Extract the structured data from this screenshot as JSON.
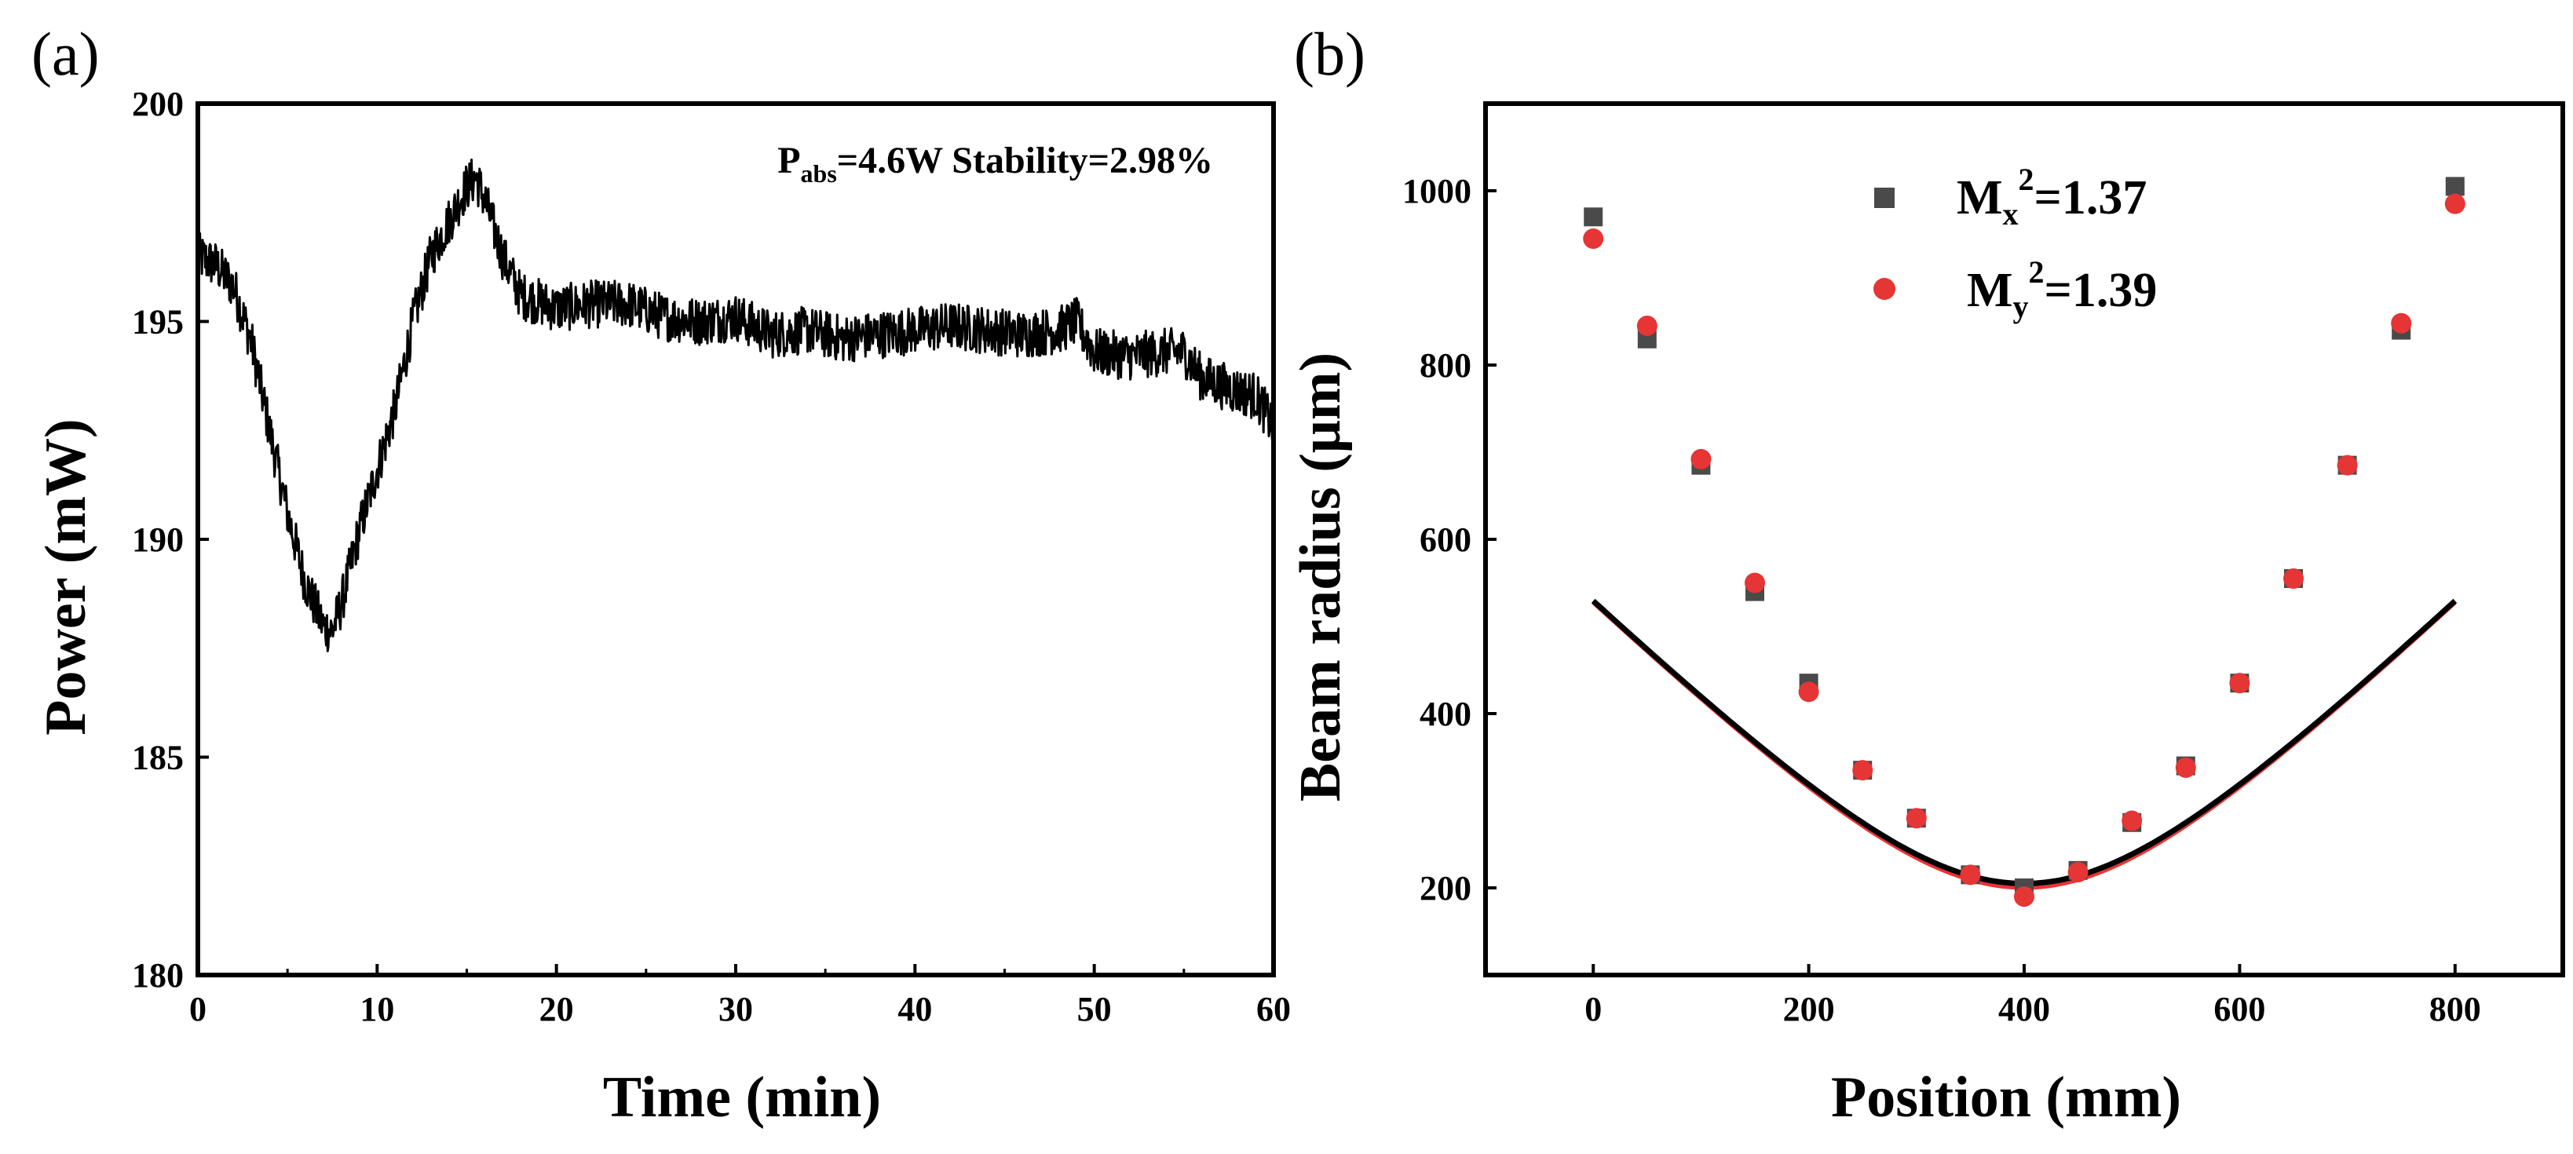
{
  "chart_data": [
    {
      "panel": "(a)",
      "type": "line",
      "title": "",
      "xlabel": "Time (min)",
      "ylabel": "Power (mW)",
      "xlim": [
        0,
        60
      ],
      "ylim": [
        180,
        200
      ],
      "xticks": [
        0,
        10,
        20,
        30,
        40,
        50,
        60
      ],
      "yticks": [
        180,
        185,
        190,
        195,
        200
      ],
      "annotation": {
        "prefix": "P",
        "subscript": "abs",
        "rest": "=4.6W Stability=2.98%"
      },
      "series": [
        {
          "name": "Power",
          "color": "#000000",
          "noise": 0.55,
          "keypoints": [
            [
              0,
              196.5
            ],
            [
              1,
              196.3
            ],
            [
              2,
              195.8
            ],
            [
              3,
              194.5
            ],
            [
              4,
              192.5
            ],
            [
              5,
              190.6
            ],
            [
              6,
              189.0
            ],
            [
              7,
              188.0
            ],
            [
              7.5,
              187.9
            ],
            [
              8,
              188.5
            ],
            [
              9,
              190.2
            ],
            [
              10,
              191.6
            ],
            [
              11,
              193.0
            ],
            [
              12,
              195.0
            ],
            [
              13,
              196.5
            ],
            [
              14,
              197.3
            ],
            [
              15,
              198.1
            ],
            [
              15.5,
              198.3
            ],
            [
              16,
              197.8
            ],
            [
              17,
              196.5
            ],
            [
              18,
              195.6
            ],
            [
              20,
              195.3
            ],
            [
              22,
              195.4
            ],
            [
              24,
              195.4
            ],
            [
              26,
              195.1
            ],
            [
              28,
              195.0
            ],
            [
              30,
              195.1
            ],
            [
              32,
              194.7
            ],
            [
              34,
              194.8
            ],
            [
              36,
              194.6
            ],
            [
              38,
              194.7
            ],
            [
              40,
              194.8
            ],
            [
              42,
              194.9
            ],
            [
              44,
              194.8
            ],
            [
              46,
              194.7
            ],
            [
              48,
              194.8
            ],
            [
              49,
              195.0
            ],
            [
              50,
              194.3
            ],
            [
              52,
              194.2
            ],
            [
              54,
              194.3
            ],
            [
              55,
              194.3
            ],
            [
              56,
              193.7
            ],
            [
              58,
              193.4
            ],
            [
              59,
              193.3
            ],
            [
              60,
              192.6
            ]
          ]
        }
      ]
    },
    {
      "panel": "(b)",
      "type": "scatter",
      "title": "",
      "xlabel": "Position (mm)",
      "ylabel": "Beam radius (μm)",
      "xlim": [
        -100,
        900
      ],
      "ylim": [
        100,
        1100
      ],
      "xticks": [
        0,
        200,
        400,
        600,
        800
      ],
      "yticks": [
        200,
        400,
        600,
        800,
        1000
      ],
      "legend_position": "top-center",
      "series": [
        {
          "name": "Mx",
          "label_base": "M",
          "label_sub": "x",
          "label_sup": "2",
          "label_value": "=1.37",
          "marker": "square",
          "color": "#4a4a4a",
          "x": [
            0,
            50,
            100,
            150,
            200,
            250,
            300,
            350,
            400,
            450,
            500,
            550,
            600,
            650,
            700,
            750,
            800
          ],
          "y": [
            970,
            830,
            685,
            540,
            435,
            335,
            280,
            215,
            200,
            220,
            275,
            340,
            435,
            555,
            685,
            840,
            1005
          ],
          "fit": {
            "w0": 205,
            "z0": 400,
            "zR": 168,
            "color": "#000000"
          }
        },
        {
          "name": "My",
          "label_base": "M",
          "label_sub": "y",
          "label_sup": "2",
          "label_value": "=1.39",
          "marker": "circle",
          "color": "#e53535",
          "x": [
            0,
            50,
            100,
            150,
            200,
            250,
            300,
            350,
            400,
            450,
            500,
            550,
            600,
            650,
            700,
            750,
            800
          ],
          "y": [
            945,
            845,
            692,
            550,
            425,
            335,
            280,
            215,
            190,
            218,
            277,
            338,
            435,
            555,
            685,
            848,
            985
          ],
          "fit": {
            "w0": 200,
            "z0": 400,
            "zR": 164,
            "color": "#e53535"
          }
        }
      ]
    }
  ]
}
